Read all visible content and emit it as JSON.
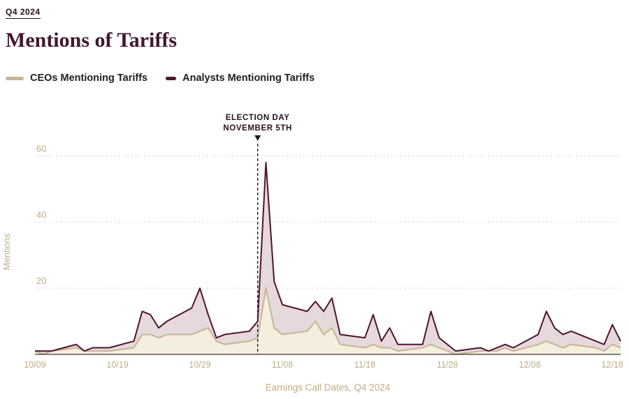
{
  "header": {
    "eyebrow": "Q4 2024",
    "title": "Mentions of Tariffs"
  },
  "legend": {
    "items": [
      {
        "label": "CEOs Mentioning Tariffs",
        "color": "#c7b493"
      },
      {
        "label": "Analysts Mentioning Tariffs",
        "color": "#4f142d"
      }
    ]
  },
  "chart_data": {
    "type": "area",
    "title": "Mentions of Tariffs",
    "xlabel": "Earnings Call Dates, Q4 2024",
    "ylabel": "Mentions",
    "ylim": [
      0,
      62
    ],
    "yticks": [
      20,
      40,
      60
    ],
    "xtick_labels": [
      "10/09",
      "10/19",
      "10/29",
      "11/08",
      "11/18",
      "11/28",
      "12/08",
      "12/18"
    ],
    "grid": "horizontal-dashed",
    "legend_position": "top-left",
    "x": [
      "10/09",
      "10/10",
      "10/11",
      "10/14",
      "10/15",
      "10/16",
      "10/17",
      "10/18",
      "10/21",
      "10/22",
      "10/23",
      "10/24",
      "10/25",
      "10/28",
      "10/29",
      "10/30",
      "10/31",
      "11/01",
      "11/04",
      "11/05",
      "11/06",
      "11/07",
      "11/08",
      "11/11",
      "11/12",
      "11/13",
      "11/14",
      "11/15",
      "11/18",
      "11/19",
      "11/20",
      "11/21",
      "11/22",
      "11/25",
      "11/26",
      "11/27",
      "11/29",
      "12/02",
      "12/03",
      "12/04",
      "12/05",
      "12/06",
      "12/09",
      "12/10",
      "12/11",
      "12/12",
      "12/13",
      "12/16",
      "12/17",
      "12/18",
      "12/19"
    ],
    "series": [
      {
        "name": "CEOs Mentioning Tariffs",
        "color": "#c7b493",
        "fill": "#f4eedf",
        "values": [
          1,
          0,
          1,
          2,
          1,
          1,
          1,
          1,
          2,
          6,
          6,
          5,
          6,
          6,
          7,
          8,
          4,
          3,
          4,
          5,
          20,
          8,
          6,
          7,
          10,
          6,
          8,
          3,
          2,
          3,
          2,
          2,
          1,
          2,
          3,
          2,
          0,
          1,
          1,
          1,
          2,
          1,
          3,
          4,
          3,
          2,
          3,
          2,
          1,
          3,
          2
        ]
      },
      {
        "name": "Analysts Mentioning Tariffs",
        "color": "#4f142d",
        "fill": "#e6d9dc",
        "values": [
          1,
          1,
          1,
          3,
          1,
          2,
          2,
          2,
          4,
          13,
          12,
          8,
          10,
          14,
          20,
          12,
          5,
          6,
          7,
          10,
          58,
          22,
          15,
          13,
          16,
          13,
          17,
          6,
          5,
          12,
          4,
          8,
          3,
          3,
          13,
          5,
          1,
          2,
          1,
          2,
          3,
          2,
          6,
          13,
          8,
          6,
          7,
          4,
          3,
          9,
          4
        ]
      }
    ],
    "annotation": {
      "line1": "ELECTION DAY",
      "line2": "NOVEMBER 5TH",
      "x": "11/05",
      "color": "#2a1120"
    },
    "axis_colors": {
      "tick_text": "#c2ab85",
      "grid": "#d9d0c3",
      "baseline": "#3c3632"
    }
  }
}
